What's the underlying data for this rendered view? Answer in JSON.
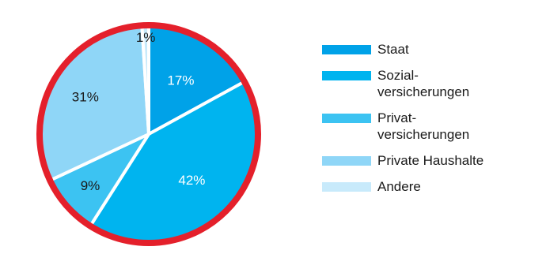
{
  "chart_data": {
    "type": "pie",
    "title": "",
    "slices": [
      {
        "label": "Staat",
        "value": 17,
        "value_label": "17%",
        "color": "#00a2e8"
      },
      {
        "label": "Sozial-\nversicherungen",
        "value": 42,
        "value_label": "42%",
        "color": "#00b4ef"
      },
      {
        "label": "Privat-\nversicherungen",
        "value": 9,
        "value_label": "9%",
        "color": "#3cc3f2"
      },
      {
        "label": "Private Haushalte",
        "value": 31,
        "value_label": "31%",
        "color": "#8fd6f7"
      },
      {
        "label": "Andere",
        "value": 1,
        "value_label": "1%",
        "color": "#c8eafb"
      }
    ],
    "start_angle_deg": 0,
    "direction": "clockwise",
    "border_color": "#e4202b",
    "separator_color": "#ffffff",
    "legend_position": "right",
    "label_colors": {
      "light": "#ffffff",
      "dark": "#1a1a1a"
    }
  }
}
